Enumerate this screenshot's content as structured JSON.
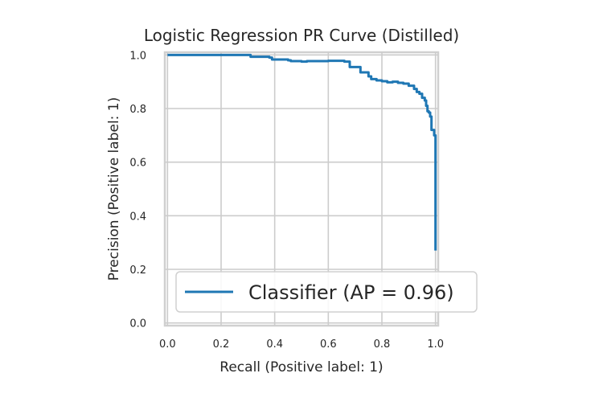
{
  "chart_data": {
    "type": "line",
    "title": "Logistic Regression PR Curve (Distilled)",
    "xlabel": "Recall (Positive label: 1)",
    "ylabel": "Precision (Positive label: 1)",
    "xlim": [
      -0.01,
      1.01
    ],
    "ylim": [
      -0.01,
      1.01
    ],
    "xticks": [
      "0.0",
      "0.2",
      "0.4",
      "0.6",
      "0.8",
      "1.0"
    ],
    "yticks": [
      "0.0",
      "0.2",
      "0.4",
      "0.6",
      "0.8",
      "1.0"
    ],
    "grid": true,
    "legend_placement": "lower-right",
    "series": [
      {
        "name": "Classifier (AP = 0.96)",
        "color": "#1f77b4",
        "x": [
          0.0,
          0.3,
          0.31,
          0.38,
          0.39,
          0.45,
          0.46,
          0.5,
          0.52,
          0.58,
          0.6,
          0.66,
          0.68,
          0.72,
          0.75,
          0.76,
          0.78,
          0.8,
          0.82,
          0.84,
          0.86,
          0.88,
          0.9,
          0.92,
          0.93,
          0.94,
          0.95,
          0.96,
          0.965,
          0.97,
          0.975,
          0.98,
          0.985,
          0.99,
          0.995,
          1.0,
          1.0,
          1.0
        ],
        "y": [
          1.0,
          1.0,
          0.993,
          0.99,
          0.983,
          0.98,
          0.977,
          0.975,
          0.977,
          0.977,
          0.978,
          0.975,
          0.955,
          0.935,
          0.92,
          0.91,
          0.905,
          0.902,
          0.898,
          0.9,
          0.896,
          0.893,
          0.885,
          0.873,
          0.862,
          0.855,
          0.84,
          0.83,
          0.81,
          0.79,
          0.785,
          0.77,
          0.72,
          0.72,
          0.7,
          0.69,
          0.45,
          0.27
        ]
      }
    ]
  }
}
